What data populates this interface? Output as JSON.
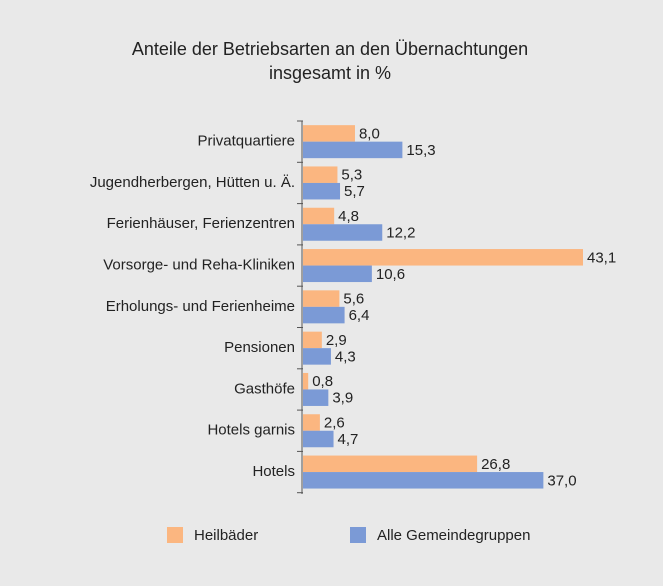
{
  "chart_data": {
    "type": "barh",
    "title": [
      "Anteile der Betriebsarten an den Übernachtungen",
      "insgesamt in %"
    ],
    "categories": [
      "Privatquartiere",
      "Jugendherbergen, Hütten u. Ä.",
      "Ferienhäuser, Ferienzentren",
      "Vorsorge- und Reha-Kliniken",
      "Erholungs- und Ferienheime",
      "Pensionen",
      "Gasthöfe",
      "Hotels garnis",
      "Hotels"
    ],
    "series": [
      {
        "name": "Heilbäder",
        "color": "#fbb680",
        "values": [
          8.0,
          5.3,
          4.8,
          43.1,
          5.6,
          2.9,
          0.8,
          2.6,
          26.8
        ],
        "value_labels": [
          "8,0",
          "5,3",
          "4,8",
          "43,1",
          "5,6",
          "2,9",
          "0,8",
          "2,6",
          "26,8"
        ]
      },
      {
        "name": "Alle Gemeindegruppen",
        "color": "#7b9ad6",
        "values": [
          15.3,
          5.7,
          12.2,
          10.6,
          6.4,
          4.3,
          3.9,
          4.7,
          37.0
        ],
        "value_labels": [
          "15,3",
          "5,7",
          "12,2",
          "10,6",
          "6,4",
          "4,3",
          "3,9",
          "4,7",
          "37,0"
        ]
      }
    ],
    "legend": "bottom"
  }
}
